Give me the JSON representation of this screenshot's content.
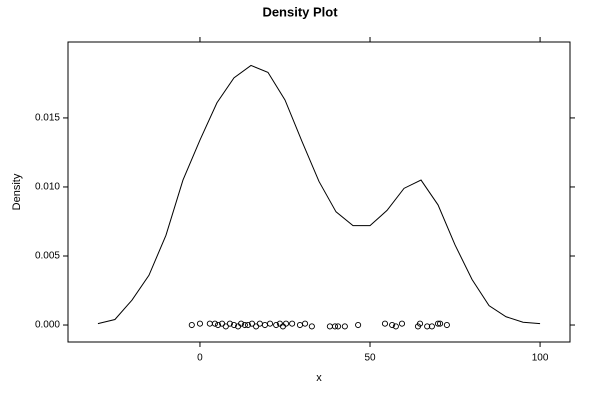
{
  "chart_data": {
    "type": "density",
    "title": "Density Plot",
    "xlabel": "x",
    "ylabel": "Density",
    "xlim": [
      -38.8,
      108.8
    ],
    "ylim": [
      -0.00123,
      0.0205
    ],
    "xticks": [
      0,
      50,
      100
    ],
    "yticks": [
      {
        "value": 0,
        "label": "0.000"
      },
      {
        "value": 0.005,
        "label": "0.005"
      },
      {
        "value": 0.01,
        "label": "0.010"
      },
      {
        "value": 0.015,
        "label": "0.015"
      }
    ],
    "color": "#000000",
    "curve": {
      "x": [
        -30,
        -25,
        -20,
        -15,
        -10,
        -5,
        0,
        5,
        10,
        15,
        20,
        25,
        30,
        35,
        40,
        45,
        50,
        55,
        60,
        65,
        70,
        75,
        80,
        85,
        90,
        95,
        100
      ],
      "y": [
        0.0001,
        0.0004,
        0.0018,
        0.0036,
        0.0065,
        0.0105,
        0.0134,
        0.0161,
        0.0179,
        0.0188,
        0.0183,
        0.0163,
        0.0133,
        0.0104,
        0.0082,
        0.0072,
        0.0072,
        0.0083,
        0.0099,
        0.0105,
        0.0087,
        0.0058,
        0.0033,
        0.0014,
        0.0006,
        0.0002,
        0.0001
      ]
    },
    "points": {
      "x": [
        -2.4,
        0,
        2.9,
        4.4,
        5.3,
        6.5,
        7.6,
        8.8,
        10,
        11.2,
        12.1,
        13.2,
        14.1,
        15.3,
        16.5,
        17.6,
        19.1,
        20.6,
        22.4,
        23.5,
        24.4,
        25.3,
        27.1,
        29.4,
        30.9,
        32.9,
        38.2,
        39.7,
        40.6,
        42.6,
        46.5,
        54.4,
        56.5,
        57.6,
        59.4,
        64.1,
        64.7,
        66.8,
        68.2,
        70,
        70.6,
        72.6
      ],
      "y": [
        0,
        0.0001,
        0.0001,
        0.0001,
        0,
        0.0001,
        -0.0001,
        0.0001,
        0,
        -0.0001,
        0.0001,
        0,
        0,
        0.0001,
        -0.0001,
        0.0001,
        0,
        0.0001,
        0,
        0.0001,
        -0.0001,
        0.0001,
        0.0001,
        0,
        0.0001,
        -0.0001,
        -0.0001,
        -0.0001,
        -0.0001,
        -0.0001,
        0,
        0.0001,
        0,
        -0.0001,
        0.0001,
        -0.0001,
        0.0001,
        -0.0001,
        -0.0001,
        0.0001,
        0.0001,
        0
      ]
    }
  }
}
